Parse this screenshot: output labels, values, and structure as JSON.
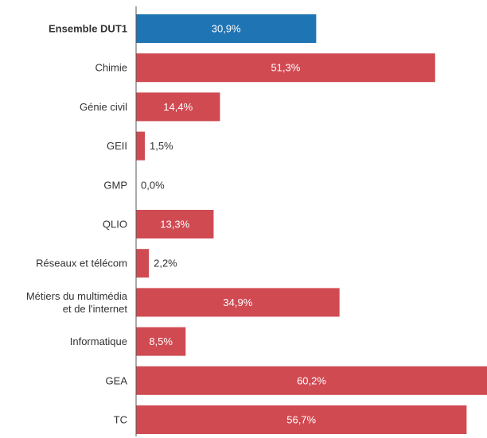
{
  "chart_data": {
    "type": "bar",
    "orientation": "horizontal",
    "categories": [
      "Ensemble DUT1",
      "Chimie",
      "Génie civil",
      "GEII",
      "GMP",
      "QLIO",
      "Réseaux et télécom",
      "Métiers du multimédia\net de l'internet",
      "Informatique",
      "GEA",
      "TC"
    ],
    "values": [
      30.9,
      51.3,
      14.4,
      1.5,
      0.0,
      13.3,
      2.2,
      34.9,
      8.5,
      60.2,
      56.7
    ],
    "labels": [
      "30,9%",
      "51,3%",
      "14,4%",
      "1,5%",
      "0,0%",
      "13,3%",
      "2,2%",
      "34,9%",
      "8,5%",
      "60,2%",
      "56,7%"
    ],
    "highlight_index": 0,
    "xlim": [
      0,
      60.2
    ],
    "grid": false,
    "colors": {
      "highlight": "#1f74b4",
      "default": "#d04a52",
      "axis": "#555555",
      "text": "#333333"
    }
  }
}
